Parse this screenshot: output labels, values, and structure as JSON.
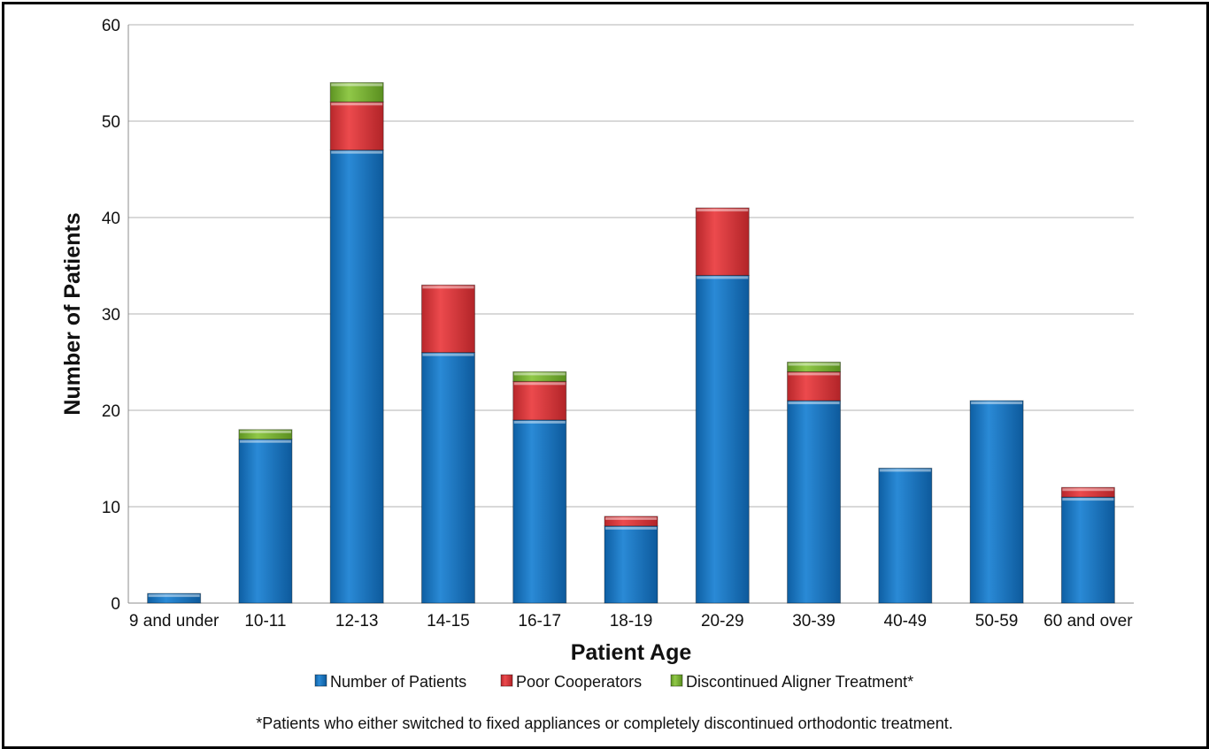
{
  "chart_data": {
    "type": "bar",
    "stacked": true,
    "categories": [
      "9 and under",
      "10-11",
      "12-13",
      "14-15",
      "16-17",
      "18-19",
      "20-29",
      "30-39",
      "40-49",
      "50-59",
      "60 and over"
    ],
    "series": [
      {
        "name": "Number of Patients",
        "color": "#1f7cc7",
        "values": [
          1,
          17,
          47,
          26,
          19,
          8,
          34,
          21,
          14,
          21,
          11
        ]
      },
      {
        "name": "Poor Cooperators",
        "color": "#e03a3e",
        "values": [
          0,
          0,
          5,
          7,
          4,
          1,
          7,
          3,
          0,
          0,
          1
        ]
      },
      {
        "name": "Discontinued Aligner Treatment*",
        "color": "#7db63a",
        "values": [
          0,
          1,
          2,
          0,
          1,
          0,
          0,
          1,
          0,
          0,
          0
        ]
      }
    ],
    "xlabel": "Patient Age",
    "ylabel": "Number of Patients",
    "ylim": [
      0,
      60
    ],
    "yticks": [
      "0",
      "10",
      "20",
      "30",
      "40",
      "50",
      "60"
    ],
    "grid": true,
    "legend_position": "bottom",
    "footnote": "*Patients who either switched to fixed appliances or completely discontinued orthodontic treatment."
  }
}
